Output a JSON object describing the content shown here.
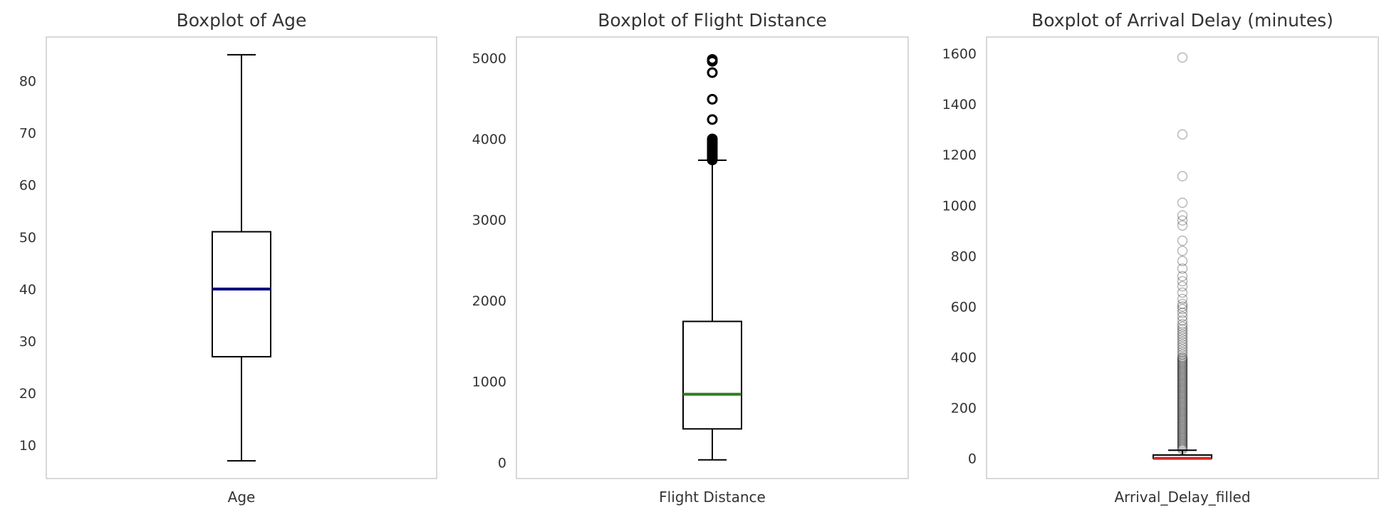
{
  "chart_data": [
    {
      "type": "box",
      "title": "Boxplot of Age",
      "xlabel": "Age",
      "ylim": [
        3.6,
        88.4
      ],
      "yticks": [
        10,
        20,
        30,
        40,
        50,
        60,
        70,
        80
      ],
      "box": {
        "min": 7,
        "q1": 27,
        "median": 40,
        "q3": 51,
        "max": 85
      },
      "outliers": [],
      "median_color": "#000080",
      "outlier_style": "none"
    },
    {
      "type": "box",
      "title": "Boxplot of Flight Distance",
      "xlabel": "Flight Distance",
      "ylim": [
        -200,
        5260
      ],
      "yticks": [
        0,
        1000,
        2000,
        3000,
        4000,
        5000
      ],
      "box": {
        "min": 31,
        "q1": 414,
        "median": 843,
        "q3": 1743,
        "max": 3736
      },
      "outliers": [
        3740,
        3760,
        3780,
        3800,
        3820,
        3840,
        3860,
        3880,
        3900,
        3920,
        3940,
        3960,
        3980,
        4000,
        4240,
        4490,
        4820,
        4960,
        4983
      ],
      "median_color": "#2e7d1e",
      "outlier_style": "bold"
    },
    {
      "type": "box",
      "title": "Boxplot of Arrival Delay (minutes)",
      "xlabel": "Arrival_Delay_filled",
      "ylim": [
        -80,
        1665
      ],
      "yticks": [
        0,
        200,
        400,
        600,
        800,
        1000,
        1200,
        1400,
        1600
      ],
      "box": {
        "min": 0,
        "q1": 0,
        "median": 0,
        "q3": 13,
        "max": 32
      },
      "outliers": [
        35,
        40,
        45,
        50,
        55,
        60,
        65,
        70,
        75,
        80,
        85,
        90,
        95,
        100,
        105,
        110,
        115,
        120,
        125,
        130,
        135,
        140,
        145,
        150,
        155,
        160,
        165,
        170,
        175,
        180,
        185,
        190,
        195,
        200,
        205,
        210,
        215,
        220,
        225,
        230,
        235,
        240,
        245,
        250,
        255,
        260,
        265,
        270,
        275,
        280,
        285,
        290,
        295,
        300,
        305,
        310,
        315,
        320,
        325,
        330,
        335,
        340,
        345,
        350,
        355,
        360,
        365,
        370,
        375,
        380,
        385,
        390,
        395,
        400,
        410,
        420,
        430,
        440,
        450,
        460,
        470,
        480,
        490,
        500,
        510,
        520,
        530,
        545,
        560,
        575,
        590,
        600,
        610,
        630,
        655,
        680,
        700,
        720,
        750,
        780,
        820,
        860,
        920,
        940,
        960,
        1010,
        1115,
        1280,
        1584
      ],
      "median_color": "#d62728",
      "outlier_style": "faint"
    }
  ]
}
